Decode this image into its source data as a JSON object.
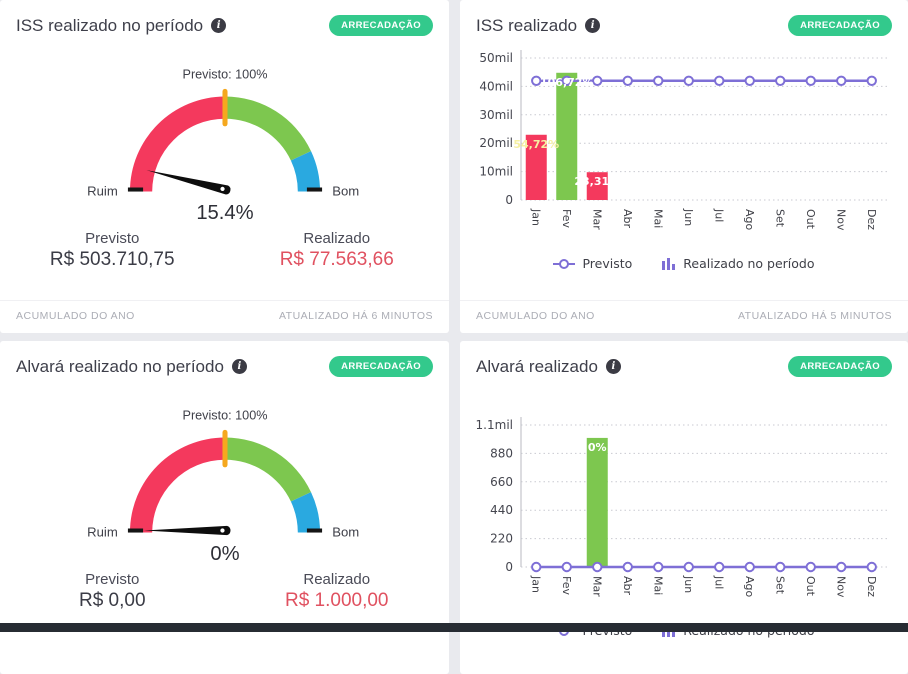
{
  "page": {
    "background_color": "#e9eaee",
    "bottom_bar_color": "#272c33"
  },
  "panels": [
    {
      "title": "ISS realizado no período",
      "badge": "ARRECADAÇÃO",
      "stats": {
        "previsto_label": "Previsto",
        "previsto_value": "R$ 503.710,75",
        "realizado_label": "Realizado",
        "realizado_value": "R$ 77.563,66"
      },
      "footer_left": "ACUMULADO DO ANO",
      "footer_right": "ATUALIZADO HÁ 6 MINUTOS"
    },
    {
      "title": "ISS realizado",
      "badge": "ARRECADAÇÃO",
      "legend": [
        {
          "label": "Previsto"
        },
        {
          "label": "Realizado no período"
        }
      ],
      "footer_left": "ACUMULADO DO ANO",
      "footer_right": "ATUALIZADO HÁ 5 MINUTOS"
    },
    {
      "title": "Alvará realizado no período",
      "badge": "ARRECADAÇÃO",
      "stats": {
        "previsto_label": "Previsto",
        "previsto_value": "R$ 0,00",
        "realizado_label": "Realizado",
        "realizado_value": "R$ 1.000,00"
      }
    },
    {
      "title": "Alvará realizado",
      "badge": "ARRECADAÇÃO",
      "legend": [
        {
          "label": "Previsto"
        },
        {
          "label": "Realizado no período"
        }
      ]
    }
  ],
  "colors": {
    "red": "#f4395d",
    "green": "#7dc74f",
    "blue": "#2aa9e0",
    "purple": "#7e6fd6",
    "marker_yellow": "#f5a81f",
    "badge_green": "#33c98c",
    "realizado_text": "#e05160"
  },
  "chart_data": [
    {
      "type": "gauge",
      "title": "ISS realizado no período",
      "value_pct": 15.4,
      "value_label": "15.4%",
      "scale_min_pct": 0,
      "scale_max_pct": 200,
      "previsto_marker_pct": 100,
      "previsto_marker_label": "Previsto: 100%",
      "left_label": "Ruim",
      "right_label": "Bom",
      "previsto_value": 503710.75,
      "realizado_value": 77563.66,
      "zones": [
        {
          "to": 100,
          "color": "#f4395d"
        },
        {
          "to": 172,
          "color": "#7dc74f"
        },
        {
          "to": 200,
          "color": "#2aa9e0"
        }
      ],
      "marker_color": "#f5a81f",
      "needle_color": "#0d0d0d"
    },
    {
      "type": "bar+line",
      "title": "ISS realizado",
      "categories": [
        "Jan",
        "Fev",
        "Mar",
        "Abr",
        "Mai",
        "Jun",
        "Jul",
        "Ago",
        "Set",
        "Out",
        "Nov",
        "Dez"
      ],
      "ylim": [
        0,
        50000
      ],
      "yticks": [
        {
          "value": 0,
          "label": "0"
        },
        {
          "value": 10000,
          "label": "10mil"
        },
        {
          "value": 20000,
          "label": "20mil"
        },
        {
          "value": 30000,
          "label": "30mil"
        },
        {
          "value": 40000,
          "label": "40mil"
        },
        {
          "value": 50000,
          "label": "50mil"
        }
      ],
      "line": {
        "name": "Previsto",
        "color": "#7e6fd6",
        "values": [
          41976,
          41976,
          41976,
          41976,
          41976,
          41976,
          41976,
          41976,
          41976,
          41976,
          41976,
          41976
        ]
      },
      "bars": [
        {
          "index": 0,
          "month": "Jan",
          "value": 22969,
          "label": "54,72%",
          "color": "#f4395d",
          "label_color": "#f6f0a3"
        },
        {
          "index": 1,
          "month": "Fev",
          "value": 44797,
          "label": "106,72%",
          "color": "#7dc74f",
          "label_color": "#ffffff"
        },
        {
          "index": 2,
          "month": "Mar",
          "value": 9785,
          "label": "23,31%",
          "color": "#f4395d",
          "label_color": "#ffffff"
        }
      ],
      "bars_series_name": "Realizado no período",
      "legend_position": "bottom",
      "grid": "dotted"
    },
    {
      "type": "gauge",
      "title": "Alvará realizado no período",
      "value_pct": 0,
      "value_label": "0%",
      "scale_min_pct": 0,
      "scale_max_pct": 200,
      "previsto_marker_pct": 100,
      "previsto_marker_label": "Previsto: 100%",
      "left_label": "Ruim",
      "right_label": "Bom",
      "previsto_value": 0,
      "realizado_value": 1000,
      "zones": [
        {
          "to": 100,
          "color": "#f4395d"
        },
        {
          "to": 172,
          "color": "#7dc74f"
        },
        {
          "to": 200,
          "color": "#2aa9e0"
        }
      ],
      "marker_color": "#f5a81f",
      "needle_color": "#0d0d0d"
    },
    {
      "type": "bar+line",
      "title": "Alvará realizado",
      "categories": [
        "Jan",
        "Fev",
        "Mar",
        "Abr",
        "Mai",
        "Jun",
        "Jul",
        "Ago",
        "Set",
        "Out",
        "Nov",
        "Dez"
      ],
      "ylim": [
        0,
        1100
      ],
      "yticks": [
        {
          "value": 0,
          "label": "0"
        },
        {
          "value": 220,
          "label": "220"
        },
        {
          "value": 440,
          "label": "440"
        },
        {
          "value": 660,
          "label": "660"
        },
        {
          "value": 880,
          "label": "880"
        },
        {
          "value": 1100,
          "label": "1.1mil"
        }
      ],
      "line": {
        "name": "Previsto",
        "color": "#7e6fd6",
        "values": [
          0,
          0,
          0,
          0,
          0,
          0,
          0,
          0,
          0,
          0,
          0,
          0
        ]
      },
      "bars": [
        {
          "index": 2,
          "month": "Mar",
          "value": 1000,
          "label": "0%",
          "color": "#7dc74f",
          "label_color": "#ffffff"
        }
      ],
      "bars_series_name": "Realizado no período",
      "legend_position": "bottom",
      "grid": "dotted"
    }
  ]
}
